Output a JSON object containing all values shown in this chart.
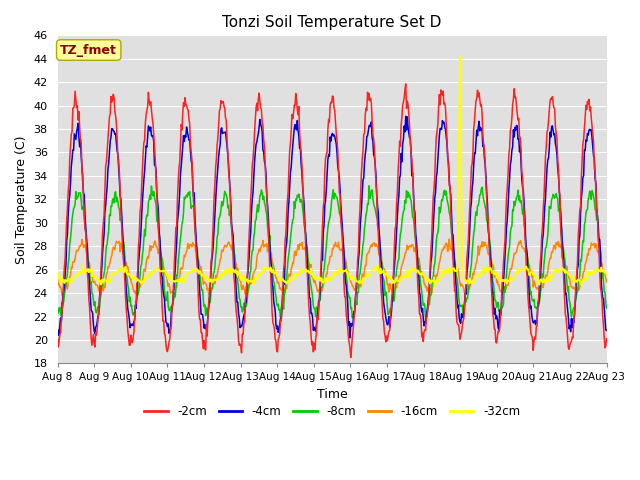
{
  "title": "Tonzi Soil Temperature Set D",
  "xlabel": "Time",
  "ylabel": "Soil Temperature (C)",
  "ylim": [
    18,
    46
  ],
  "yticks": [
    18,
    20,
    22,
    24,
    26,
    28,
    30,
    32,
    34,
    36,
    38,
    40,
    42,
    44,
    46
  ],
  "xtick_labels": [
    "Aug 8",
    "Aug 9",
    "Aug 10",
    "Aug 11",
    "Aug 12",
    "Aug 13",
    "Aug 14",
    "Aug 15",
    "Aug 16",
    "Aug 17",
    "Aug 18",
    "Aug 19",
    "Aug 20",
    "Aug 21",
    "Aug 22",
    "Aug 23"
  ],
  "bg_color": "#e0e0e0",
  "grid_color": "#ffffff",
  "annotation_text": "TZ_fmet",
  "annotation_color": "#8b0000",
  "annotation_bg": "#ffff99",
  "annotation_edge": "#aaaa00",
  "series_colors": {
    "-2cm": "#ff2222",
    "-4cm": "#0000dd",
    "-8cm": "#00cc00",
    "-16cm": "#ff8800",
    "-32cm": "#ffff00"
  },
  "legend_labels": [
    "-2cm",
    "-4cm",
    "-8cm",
    "-16cm",
    "-32cm"
  ],
  "n_days": 15,
  "pts_per_day": 48
}
